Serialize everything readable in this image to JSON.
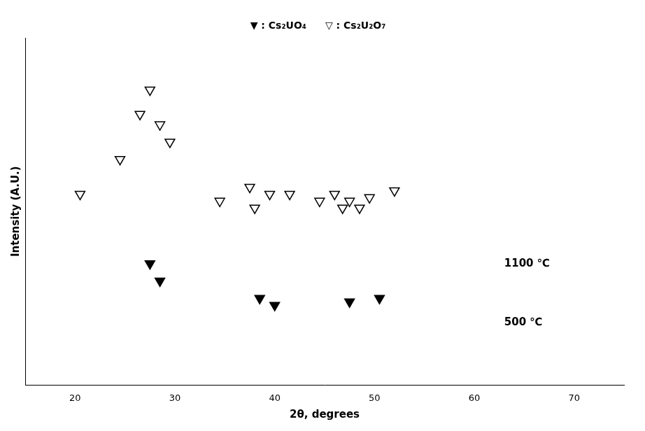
{
  "chart_data": {
    "type": "scatter",
    "xlabel": "2θ, degrees",
    "ylabel": "Intensity (A.U.)",
    "xlim": [
      15,
      75
    ],
    "ylim": [
      0,
      10
    ],
    "xticks": [
      20,
      30,
      40,
      50,
      60,
      70
    ],
    "tick_labels": "x",
    "grid": false,
    "legend": "top",
    "annotations": [
      {
        "text": "1100 ℃",
        "x": 63,
        "y": 3.5
      },
      {
        "text": "500 ℃",
        "x": 63,
        "y": 1.8
      }
    ],
    "series": [
      {
        "name": "▽ : Cs₂U₂O₇",
        "color": "#000000",
        "marker": "triangle-down-open",
        "x": [
          20.5,
          24.5,
          26.5,
          27.5,
          28.5,
          29.5,
          34.5,
          37.5,
          38.0,
          39.5,
          41.5,
          44.5,
          46.0,
          46.8,
          47.5,
          48.5,
          49.5,
          52.0
        ],
        "values": [
          5.5,
          6.5,
          7.8,
          8.5,
          7.5,
          7.0,
          5.3,
          5.7,
          5.1,
          5.5,
          5.5,
          5.3,
          5.5,
          5.1,
          5.3,
          5.1,
          5.4,
          5.6
        ]
      },
      {
        "name": "▼ : Cs₂UO₄",
        "color": "#000000",
        "marker": "triangle-down",
        "x": [
          27.5,
          28.5,
          38.5,
          40.0,
          47.5,
          50.5
        ],
        "values": [
          3.5,
          3.0,
          2.5,
          2.3,
          2.4,
          2.5
        ]
      }
    ]
  }
}
